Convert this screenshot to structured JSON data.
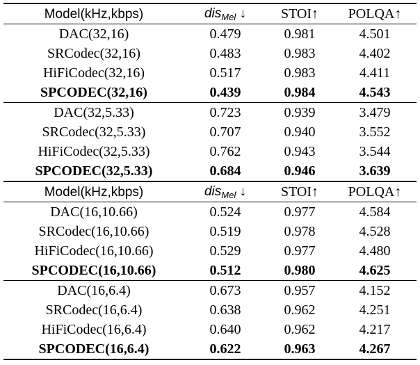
{
  "blocks": [
    {
      "header": [
        "Model(kHz,kbps)",
        "STOI↑",
        "POLQA↑"
      ],
      "metric_dis": "dis",
      "metric_sub": "Mel",
      "metric_arrow": "↓",
      "groups": [
        [
          [
            "DAC(32,16)",
            "0.479",
            "0.981",
            "4.501"
          ],
          [
            "SRCodec(32,16)",
            "0.483",
            "0.983",
            "4.402"
          ],
          [
            "HiFiCodec(32,16)",
            "0.517",
            "0.983",
            "4.411"
          ],
          [
            "SPCODEC(32,16)",
            "0.439",
            "0.984",
            "4.543"
          ]
        ],
        [
          [
            "DAC(32,5.33)",
            "0.723",
            "0.939",
            "3.479"
          ],
          [
            "SRCodec(32,5.33)",
            "0.707",
            "0.940",
            "3.552"
          ],
          [
            "HiFiCodec(32,5.33)",
            "0.762",
            "0.943",
            "3.544"
          ],
          [
            "SPCODEC(32,5.33)",
            "0.684",
            "0.946",
            "3.639"
          ]
        ]
      ]
    },
    {
      "header": [
        "Model(kHz,kbps)",
        "STOI↑",
        "POLQA↑"
      ],
      "metric_dis": "dis",
      "metric_sub": "Mel",
      "metric_arrow": "↓",
      "groups": [
        [
          [
            "DAC(16,10.66)",
            "0.524",
            "0.977",
            "4.584"
          ],
          [
            "SRCodec(16,10.66)",
            "0.519",
            "0.978",
            "4.528"
          ],
          [
            "HiFiCodec(16,10.66)",
            "0.529",
            "0.977",
            "4.480"
          ],
          [
            "SPCODEC(16,10.66)",
            "0.512",
            "0.980",
            "4.625"
          ]
        ],
        [
          [
            "DAC(16,6.4)",
            "0.673",
            "0.957",
            "4.152"
          ],
          [
            "SRCodec(16,6.4)",
            "0.638",
            "0.962",
            "4.251"
          ],
          [
            "HiFiCodec(16,6.4)",
            "0.640",
            "0.962",
            "4.217"
          ],
          [
            "SPCODEC(16,6.4)",
            "0.622",
            "0.963",
            "4.267"
          ]
        ]
      ]
    }
  ]
}
